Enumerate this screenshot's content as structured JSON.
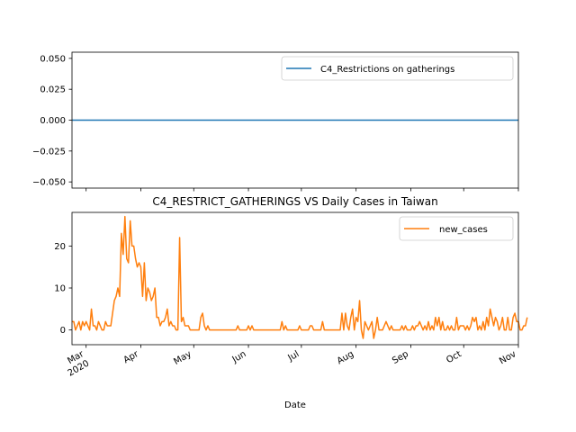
{
  "chart_data": [
    {
      "type": "line",
      "title": "",
      "xlabel": "",
      "ylabel": "",
      "ylim": [
        -0.055,
        0.055
      ],
      "yticks": [
        0.05,
        0.025,
        0.0,
        -0.025,
        -0.05
      ],
      "ytick_labels": [
        "0.050",
        "0.025",
        "0.000",
        "−0.025",
        "−0.050"
      ],
      "legend_position": "top-right",
      "grid": false,
      "series": [
        {
          "name": "C4_Restrictions on gatherings",
          "color": "#1f77b4",
          "values": "constant 0 from 2020-02-22 to 2020-11-01"
        }
      ],
      "constant_value": 0
    },
    {
      "type": "line",
      "title": "C4_RESTRICT_GATHERINGS VS Daily Cases in Taiwan",
      "xlabel": "Date",
      "ylabel": "",
      "ylim": [
        -3.5,
        28
      ],
      "yticks": [
        0,
        10,
        20
      ],
      "ytick_labels": [
        "0",
        "10",
        "20"
      ],
      "xlim": [
        "2020-02-22",
        "2020-11-01"
      ],
      "xticks": [
        "2020-03-01",
        "2020-04-01",
        "2020-05-01",
        "2020-06-01",
        "2020-07-01",
        "2020-08-01",
        "2020-09-01",
        "2020-10-01",
        "2020-11-01"
      ],
      "xtick_labels": [
        "Mar\n2020",
        "Apr",
        "May",
        "Jun",
        "Jul",
        "Aug",
        "Sep",
        "Oct",
        "Nov"
      ],
      "legend_position": "top-right",
      "grid": false,
      "series": [
        {
          "name": "new_cases",
          "color": "#ff7f0e",
          "start_date": "2020-02-22",
          "values": [
            2,
            2,
            0,
            1,
            2,
            0,
            2,
            1,
            2,
            1,
            0,
            5,
            1,
            1,
            0,
            2,
            1,
            0,
            0,
            2,
            1,
            1,
            1,
            4,
            7,
            8,
            10,
            8,
            23,
            18,
            27,
            17,
            16,
            26,
            20,
            20,
            17,
            15,
            16,
            15,
            8,
            16,
            7,
            10,
            9,
            7,
            8,
            10,
            3,
            3,
            1,
            2,
            2,
            3,
            5,
            1,
            2,
            1,
            1,
            0,
            0,
            22,
            2,
            3,
            1,
            1,
            1,
            0,
            0,
            0,
            0,
            0,
            0,
            3,
            4,
            1,
            0,
            1,
            0,
            0,
            0,
            0,
            0,
            0,
            0,
            0,
            0,
            0,
            0,
            0,
            0,
            0,
            0,
            0,
            1,
            0,
            0,
            0,
            0,
            0,
            1,
            0,
            1,
            0,
            0,
            0,
            0,
            0,
            0,
            0,
            0,
            0,
            0,
            0,
            0,
            0,
            0,
            0,
            0,
            2,
            0,
            1,
            0,
            0,
            0,
            0,
            0,
            0,
            0,
            1,
            0,
            0,
            0,
            0,
            0,
            1,
            1,
            0,
            0,
            0,
            0,
            0,
            2,
            0,
            0,
            0,
            0,
            0,
            0,
            0,
            0,
            0,
            0,
            4,
            0,
            4,
            1,
            0,
            3,
            5,
            0,
            3,
            2,
            7,
            0,
            -2,
            2,
            1,
            0,
            1,
            2,
            -2,
            0,
            3,
            0,
            0,
            0,
            1,
            2,
            1,
            0,
            1,
            0,
            0,
            0,
            0,
            0,
            1,
            0,
            1,
            0,
            0,
            0,
            1,
            0,
            1,
            1,
            2,
            1,
            0,
            1,
            0,
            2,
            0,
            1,
            0,
            3,
            1,
            3,
            0,
            2,
            0,
            0,
            1,
            0,
            1,
            0,
            0,
            3,
            0,
            1,
            1,
            1,
            0,
            1,
            0,
            1,
            3,
            2,
            3,
            0,
            1,
            0,
            2,
            0,
            3,
            1,
            5,
            3,
            1,
            3,
            2,
            0,
            1,
            3,
            0,
            0,
            3,
            0,
            0,
            3,
            4,
            2,
            2,
            0,
            0,
            1,
            1,
            3
          ]
        }
      ]
    }
  ]
}
